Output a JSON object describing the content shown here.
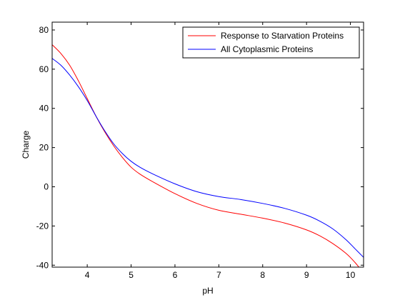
{
  "chart_data": {
    "type": "line",
    "title": "",
    "xlabel": "pH",
    "ylabel": "Charge",
    "xlim": [
      3.2,
      10.3
    ],
    "ylim": [
      -41,
      84
    ],
    "xticks": [
      4,
      5,
      6,
      7,
      8,
      9,
      10
    ],
    "yticks": [
      -40,
      -20,
      0,
      20,
      40,
      60,
      80
    ],
    "grid": false,
    "legend": "top-right",
    "series": [
      {
        "name": "Response to Starvation Proteins",
        "color": "#ff0000",
        "x": [
          3.2,
          3.4,
          3.6,
          3.8,
          4.0,
          4.2,
          4.4,
          4.6,
          4.8,
          5.0,
          5.2,
          5.5,
          6.0,
          6.5,
          7.0,
          7.5,
          8.0,
          8.5,
          9.0,
          9.3,
          9.6,
          9.9,
          10.1,
          10.3
        ],
        "y": [
          72.5,
          68,
          62,
          54,
          45,
          36,
          28,
          21,
          15,
          10,
          6.5,
          2.5,
          -3.5,
          -8.5,
          -12,
          -14,
          -16,
          -18.5,
          -22,
          -25,
          -29,
          -34,
          -38.5,
          -44
        ]
      },
      {
        "name": "All Cytoplasmic Proteins",
        "color": "#0000ff",
        "x": [
          3.2,
          3.4,
          3.6,
          3.8,
          4.0,
          4.2,
          4.4,
          4.6,
          4.8,
          5.0,
          5.2,
          5.5,
          6.0,
          6.5,
          7.0,
          7.5,
          8.0,
          8.5,
          9.0,
          9.3,
          9.6,
          9.9,
          10.1,
          10.3
        ],
        "y": [
          65.5,
          62,
          57,
          51,
          44,
          36,
          28.5,
          22,
          17,
          13,
          10,
          6.5,
          1.5,
          -2.5,
          -5,
          -6.5,
          -8.5,
          -11,
          -14.5,
          -17.5,
          -21.5,
          -27,
          -31.5,
          -36
        ]
      }
    ]
  }
}
